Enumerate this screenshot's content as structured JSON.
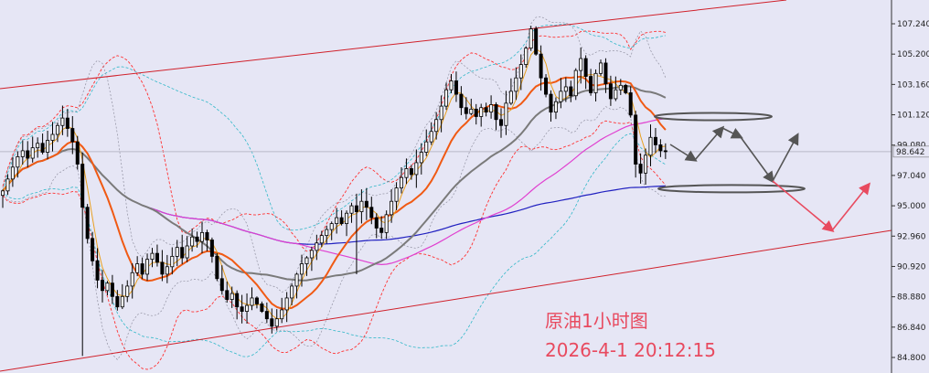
{
  "chart_data": {
    "type": "candlestick",
    "title": "",
    "annotation": {
      "line1": "原油1小时图",
      "line2": "2026-4-1 20:12:15"
    },
    "y_axis": {
      "side": "right",
      "ticks": [
        "107.240",
        "105.200",
        "103.160",
        "101.120",
        "99.080",
        "97.040",
        "95.000",
        "92.960",
        "90.920",
        "88.880",
        "86.840",
        "84.800"
      ],
      "ylim": [
        83.8,
        108.4
      ]
    },
    "current_price": {
      "value": 98.642,
      "label": "98.642"
    },
    "grid": false,
    "colors": {
      "background": "#e6e6f5",
      "candle": "#000000",
      "channel": "#d0202a",
      "ma_fast": "#e8a020",
      "ma_orange": "#f05a14",
      "ma_gray": "#7a7a7a",
      "ma_magenta": "#e040d0",
      "ma_blue": "#2020c0",
      "bands_red": "#ff3030",
      "bands_cyan": "#30b8c8",
      "bands_gray": "#9090a0",
      "scenario_bull": "#555555",
      "scenario_bear": "#e84a5f"
    },
    "key_levels": [
      101.0,
      96.15
    ],
    "candles_close": [
      96.0,
      96.8,
      97.6,
      98.3,
      98.7,
      98.2,
      98.9,
      99.2,
      98.6,
      99.4,
      99.8,
      100.4,
      100.9,
      100.2,
      99.3,
      97.8,
      94.9,
      92.8,
      91.3,
      90.0,
      89.3,
      89.8,
      88.9,
      88.2,
      88.9,
      89.6,
      90.5,
      91.1,
      90.4,
      91.4,
      91.8,
      91.2,
      90.4,
      90.9,
      91.6,
      92.2,
      91.5,
      92.3,
      92.9,
      92.6,
      93.2,
      92.7,
      91.6,
      90.1,
      89.3,
      88.7,
      89.1,
      88.2,
      87.9,
      88.3,
      88.8,
      88.4,
      87.9,
      87.4,
      86.9,
      87.4,
      88.0,
      88.8,
      89.6,
      90.4,
      91.1,
      91.5,
      92.0,
      92.5,
      93.0,
      93.4,
      93.8,
      94.2,
      93.8,
      94.5,
      95.0,
      94.6,
      95.3,
      94.9,
      94.2,
      93.5,
      93.2,
      94.4,
      95.3,
      96.2,
      96.9,
      97.5,
      97.1,
      97.9,
      98.6,
      99.3,
      100.0,
      100.8,
      101.7,
      102.8,
      103.4,
      102.5,
      101.6,
      101.2,
      101.5,
      101.0,
      101.6,
      101.3,
      101.8,
      100.8,
      100.4,
      101.9,
      102.7,
      103.6,
      104.5,
      105.6,
      106.9,
      105.2,
      103.6,
      102.5,
      101.3,
      102.0,
      102.7,
      103.0,
      102.4,
      104.1,
      104.9,
      103.7,
      102.6,
      103.9,
      104.6,
      103.2,
      102.2,
      102.8,
      103.1,
      102.6,
      101.1,
      97.8,
      97.2,
      98.4,
      99.6,
      99.1,
      98.7,
      98.642
    ],
    "scenarios": [
      {
        "name": "bull",
        "points": [
          [
            733,
            158
          ],
          [
            760,
            175
          ],
          [
            790,
            140
          ],
          [
            810,
            150
          ],
          [
            845,
            198
          ],
          [
            872,
            148
          ]
        ]
      },
      {
        "name": "bear",
        "points": [
          [
            845,
            198
          ],
          [
            910,
            252
          ],
          [
            950,
            202
          ]
        ]
      }
    ]
  }
}
